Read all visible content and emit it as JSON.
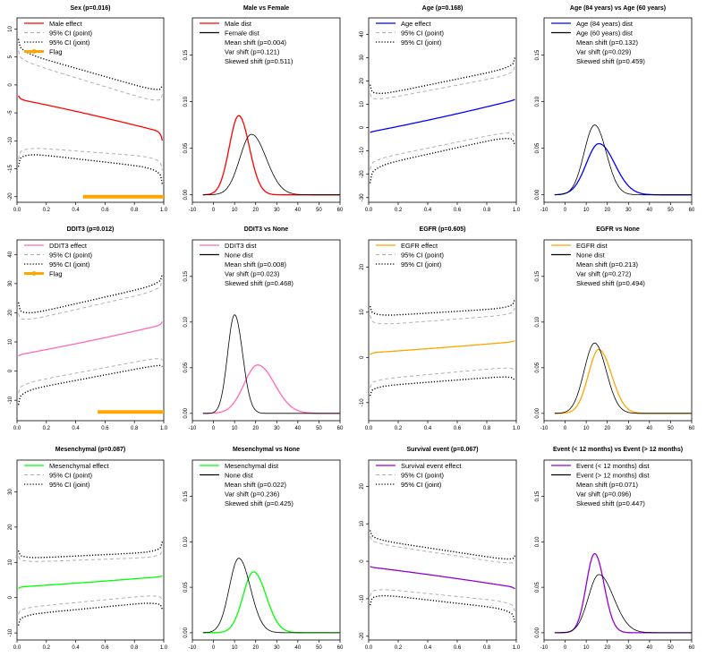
{
  "colors": {
    "red": "#ff0000",
    "blue": "#0000ff",
    "pink": "#ff69b4",
    "orange": "#ffa500",
    "green": "#00ff00",
    "purple": "#9400d3",
    "black": "#000000",
    "gray": "#b0b0b0"
  },
  "chart_data": [
    {
      "type": "line",
      "panel": 1,
      "title": "Sex (p=0.016)",
      "xlim": [
        0,
        1
      ],
      "ylim": [
        -21,
        12
      ],
      "xticks": [
        "0.0",
        "0.2",
        "0.4",
        "0.6",
        "0.8",
        "1.0"
      ],
      "yticks": [
        "-20",
        "-15",
        "-10",
        "-5",
        "0",
        "5",
        "10"
      ],
      "legend": [
        "Male effect",
        "95% CI (point)",
        "95% CI (joint)",
        "Flag"
      ],
      "series": [
        {
          "name": "Male effect",
          "color": "red",
          "style": "solid",
          "kind": "effect",
          "start": -2.5,
          "end": -8.5,
          "edge_start": -1.0,
          "edge_end": -12.0
        },
        {
          "name": "95% CI (point) upper",
          "color": "gray",
          "style": "dashed",
          "kind": "ciu",
          "start": 4.5,
          "end": -3.5,
          "edge_start": 7.5,
          "edge_end": -0.5
        },
        {
          "name": "95% CI (point) lower",
          "color": "gray",
          "style": "dashed",
          "kind": "cil",
          "start": -11.0,
          "end": -13.0,
          "edge_start": -15.0,
          "edge_end": -17.0
        },
        {
          "name": "95% CI (joint) upper",
          "color": "black",
          "style": "dotted",
          "kind": "ciu",
          "start": 6.0,
          "end": -1.5,
          "edge_start": 10.0,
          "edge_end": 1.0
        },
        {
          "name": "95% CI (joint) lower",
          "color": "black",
          "style": "dotted",
          "kind": "cil",
          "start": -12.0,
          "end": -15.0,
          "edge_start": -16.5,
          "edge_end": -20.0
        }
      ],
      "flag": {
        "color": "orange",
        "x_start": 0.45,
        "x_end": 1.0,
        "y": -20
      }
    },
    {
      "type": "line",
      "panel": 2,
      "title": "Male vs Female",
      "xlim": [
        -10,
        60
      ],
      "ylim": [
        -0.008,
        0.19
      ],
      "xticks": [
        "-10",
        "0",
        "10",
        "20",
        "30",
        "40",
        "50",
        "60"
      ],
      "yticks": [
        "0.00",
        "0.05",
        "0.10",
        "0.15"
      ],
      "legend": [
        "Male dist",
        "Female dist",
        "Mean shift (p=0.004)",
        "Var shift (p=0.121)",
        "Skewed shift (p=0.511)"
      ],
      "series": [
        {
          "name": "Male dist",
          "color": "red",
          "peak_x": 12,
          "peak_y": 0.085,
          "sd_left": 4.5,
          "sd_right": 5.0
        },
        {
          "name": "Female dist",
          "color": "black",
          "peak_x": 18,
          "peak_y": 0.065,
          "sd_left": 5.5,
          "sd_right": 7.0
        }
      ]
    },
    {
      "type": "line",
      "panel": 3,
      "title": "Age (p=0.168)",
      "xlim": [
        0,
        1
      ],
      "ylim": [
        -32,
        47
      ],
      "xticks": [
        "0.0",
        "0.2",
        "0.4",
        "0.6",
        "0.8",
        "1.0"
      ],
      "yticks": [
        "-30",
        "-20",
        "-10",
        "0",
        "10",
        "20",
        "30",
        "40"
      ],
      "legend": [
        "Age effect",
        "95% CI (point)",
        "95% CI (joint)"
      ],
      "series": [
        {
          "name": "Age effect",
          "color": "blue",
          "style": "solid",
          "kind": "effect",
          "start": -2.0,
          "end": 12.0,
          "edge_start": -2.5,
          "edge_end": 12.5
        },
        {
          "name": "95% CI (point) upper",
          "color": "gray",
          "style": "dashed",
          "kind": "ciu",
          "start": 11.0,
          "end": 23.0,
          "edge_start": 17.0,
          "edge_end": 29.0
        },
        {
          "name": "95% CI (point) lower",
          "color": "gray",
          "style": "dashed",
          "kind": "cil",
          "start": -14.0,
          "end": -1.0,
          "edge_start": -21.0,
          "edge_end": -6.0
        },
        {
          "name": "95% CI (joint) upper",
          "color": "black",
          "style": "dotted",
          "kind": "ciu",
          "start": 13.0,
          "end": 26.0,
          "edge_start": 22.0,
          "edge_end": 33.0
        },
        {
          "name": "95% CI (joint) lower",
          "color": "black",
          "style": "dotted",
          "kind": "cil",
          "start": -17.0,
          "end": -3.0,
          "edge_start": -29.0,
          "edge_end": -11.0
        }
      ]
    },
    {
      "type": "line",
      "panel": 4,
      "title": "Age (84 years) vs Age (60 years)",
      "xlim": [
        -10,
        60
      ],
      "ylim": [
        -0.008,
        0.19
      ],
      "xticks": [
        "-10",
        "0",
        "10",
        "20",
        "30",
        "40",
        "50",
        "60"
      ],
      "yticks": [
        "0.00",
        "0.05",
        "0.10",
        "0.15"
      ],
      "legend": [
        "Age (84 years) dist",
        "Age (60 years) dist",
        "Mean shift (p=0.132)",
        "Var shift (p=0.029)",
        "Skewed shift (p=0.459)"
      ],
      "series": [
        {
          "name": "Age (84 years) dist",
          "color": "blue",
          "peak_x": 16,
          "peak_y": 0.055,
          "sd_left": 6.0,
          "sd_right": 7.5
        },
        {
          "name": "Age (60 years) dist",
          "color": "black",
          "peak_x": 14,
          "peak_y": 0.075,
          "sd_left": 5.0,
          "sd_right": 5.5
        }
      ]
    },
    {
      "type": "line",
      "panel": 5,
      "title": "DDIT3 (p=0.012)",
      "xlim": [
        0,
        1
      ],
      "ylim": [
        -17,
        45
      ],
      "xticks": [
        "0.0",
        "0.2",
        "0.4",
        "0.6",
        "0.8",
        "1.0"
      ],
      "yticks": [
        "-10",
        "0",
        "10",
        "20",
        "30",
        "40"
      ],
      "legend": [
        "DDIT3 effect",
        "95% CI (point)",
        "95% CI (joint)",
        "Flag"
      ],
      "series": [
        {
          "name": "DDIT3 effect",
          "color": "pink",
          "style": "solid",
          "kind": "effect",
          "start": 5.5,
          "end": 16.0,
          "edge_start": 4.5,
          "edge_end": 18.5
        },
        {
          "name": "95% CI (point) upper",
          "color": "gray",
          "style": "dashed",
          "kind": "ciu",
          "start": 16.5,
          "end": 28.0,
          "edge_start": 22.0,
          "edge_end": 34.0
        },
        {
          "name": "95% CI (point) lower",
          "color": "gray",
          "style": "dashed",
          "kind": "cil",
          "start": -4.5,
          "end": 5.0,
          "edge_start": -10.0,
          "edge_end": 3.0
        },
        {
          "name": "95% CI (joint) upper",
          "color": "black",
          "style": "dotted",
          "kind": "ciu",
          "start": 18.5,
          "end": 30.0,
          "edge_start": 27.0,
          "edge_end": 36.0
        },
        {
          "name": "95% CI (joint) lower",
          "color": "black",
          "style": "dotted",
          "kind": "cil",
          "start": -7.0,
          "end": 2.5,
          "edge_start": -15.0,
          "edge_end": 1.0
        }
      ],
      "flag": {
        "color": "orange",
        "x_start": 0.55,
        "x_end": 1.0,
        "y": -14
      }
    },
    {
      "type": "line",
      "panel": 6,
      "title": "DDIT3 vs None",
      "xlim": [
        -10,
        60
      ],
      "ylim": [
        -0.008,
        0.19
      ],
      "xticks": [
        "-10",
        "0",
        "10",
        "20",
        "30",
        "40",
        "50",
        "60"
      ],
      "yticks": [
        "0.00",
        "0.05",
        "0.10",
        "0.15"
      ],
      "legend": [
        "DDIT3 dist",
        "None dist",
        "Mean shift (p=0.008)",
        "Var shift (p=0.023)",
        "Skewed shift (p=0.468)"
      ],
      "series": [
        {
          "name": "DDIT3 dist",
          "color": "pink",
          "peak_x": 21,
          "peak_y": 0.053,
          "sd_left": 6.5,
          "sd_right": 8.0
        },
        {
          "name": "None dist",
          "color": "black",
          "peak_x": 10,
          "peak_y": 0.108,
          "sd_left": 3.3,
          "sd_right": 3.8
        }
      ]
    },
    {
      "type": "line",
      "panel": 7,
      "title": "EGFR (p=0.605)",
      "xlim": [
        0,
        1
      ],
      "ylim": [
        -14,
        26
      ],
      "xticks": [
        "0.0",
        "0.2",
        "0.4",
        "0.6",
        "0.8",
        "1.0"
      ],
      "yticks": [
        "-10",
        "0",
        "10",
        "20"
      ],
      "legend": [
        "EGFR effect",
        "95% CI (point)",
        "95% CI (joint)"
      ],
      "series": [
        {
          "name": "EGFR effect",
          "color": "orange",
          "style": "solid",
          "kind": "effect",
          "start": 1.0,
          "end": 3.5,
          "edge_start": 0.0,
          "edge_end": 4.0
        },
        {
          "name": "95% CI (point) upper",
          "color": "gray",
          "style": "dashed",
          "kind": "ciu",
          "start": 7.0,
          "end": 9.5,
          "edge_start": 11.0,
          "edge_end": 12.0
        },
        {
          "name": "95% CI (point) lower",
          "color": "gray",
          "style": "dashed",
          "kind": "cil",
          "start": -5.0,
          "end": -2.0,
          "edge_start": -8.0,
          "edge_end": -4.0
        },
        {
          "name": "95% CI (joint) upper",
          "color": "black",
          "style": "dotted",
          "kind": "ciu",
          "start": 9.0,
          "end": 11.0,
          "edge_start": 13.0,
          "edge_end": 14.5
        },
        {
          "name": "95% CI (joint) lower",
          "color": "black",
          "style": "dotted",
          "kind": "cil",
          "start": -6.5,
          "end": -4.0,
          "edge_start": -10.0,
          "edge_end": -6.0
        }
      ]
    },
    {
      "type": "line",
      "panel": 8,
      "title": "EGFR vs None",
      "xlim": [
        -10,
        60
      ],
      "ylim": [
        -0.008,
        0.19
      ],
      "xticks": [
        "-10",
        "0",
        "10",
        "20",
        "30",
        "40",
        "50",
        "60"
      ],
      "yticks": [
        "0.00",
        "0.05",
        "0.10",
        "0.15"
      ],
      "legend": [
        "EGFR dist",
        "None dist",
        "Mean shift (p=0.213)",
        "Var shift (p=0.272)",
        "Skewed shift (p=0.494)"
      ],
      "series": [
        {
          "name": "EGFR dist",
          "color": "orange",
          "peak_x": 16,
          "peak_y": 0.07,
          "sd_left": 5.0,
          "sd_right": 6.0
        },
        {
          "name": "None dist",
          "color": "black",
          "peak_x": 14,
          "peak_y": 0.077,
          "sd_left": 5.0,
          "sd_right": 5.5
        }
      ]
    },
    {
      "type": "line",
      "panel": 9,
      "title": "Mesenchymal (p=0.087)",
      "xlim": [
        0,
        1
      ],
      "ylim": [
        -12,
        39
      ],
      "xticks": [
        "0.0",
        "0.2",
        "0.4",
        "0.6",
        "0.8",
        "1.0"
      ],
      "yticks": [
        "-10",
        "0",
        "10",
        "20",
        "30"
      ],
      "legend": [
        "Mesenchymal effect",
        "95% CI (point)",
        "95% CI (joint)"
      ],
      "series": [
        {
          "name": "Mesenchymal effect",
          "color": "green",
          "style": "solid",
          "kind": "effect",
          "start": 3.0,
          "end": 6.0,
          "edge_start": 2.0,
          "edge_end": 6.5
        },
        {
          "name": "95% CI (point) upper",
          "color": "gray",
          "style": "dashed",
          "kind": "ciu",
          "start": 10.0,
          "end": 11.5,
          "edge_start": 13.0,
          "edge_end": 15.0
        },
        {
          "name": "95% CI (point) lower",
          "color": "gray",
          "style": "dashed",
          "kind": "cil",
          "start": -3.0,
          "end": 1.0,
          "edge_start": -6.0,
          "edge_end": -2.0
        },
        {
          "name": "95% CI (joint) upper",
          "color": "black",
          "style": "dotted",
          "kind": "ciu",
          "start": 11.0,
          "end": 13.0,
          "edge_start": 15.0,
          "edge_end": 18.0
        },
        {
          "name": "95% CI (joint) lower",
          "color": "black",
          "style": "dotted",
          "kind": "cil",
          "start": -5.0,
          "end": -1.0,
          "edge_start": -10.0,
          "edge_end": -5.0
        }
      ]
    },
    {
      "type": "line",
      "panel": 10,
      "title": "Mesenchymal vs None",
      "xlim": [
        -10,
        60
      ],
      "ylim": [
        -0.008,
        0.19
      ],
      "xticks": [
        "-10",
        "0",
        "10",
        "20",
        "30",
        "40",
        "50",
        "60"
      ],
      "yticks": [
        "0.00",
        "0.05",
        "0.10",
        "0.15"
      ],
      "legend": [
        "Mesenchymal dist",
        "None dist",
        "Mean shift (p=0.022)",
        "Var shift (p=0.236)",
        "Skewed shift (p=0.425)"
      ],
      "series": [
        {
          "name": "Mesenchymal dist",
          "color": "green",
          "peak_x": 19,
          "peak_y": 0.067,
          "sd_left": 5.0,
          "sd_right": 6.0
        },
        {
          "name": "None dist",
          "color": "black",
          "peak_x": 12,
          "peak_y": 0.082,
          "sd_left": 4.5,
          "sd_right": 5.5
        }
      ]
    },
    {
      "type": "line",
      "panel": 11,
      "title": "Survival event (p=0.067)",
      "xlim": [
        0,
        1
      ],
      "ylim": [
        -21,
        27
      ],
      "xticks": [
        "0.0",
        "0.2",
        "0.4",
        "0.6",
        "0.8",
        "1.0"
      ],
      "yticks": [
        "-20",
        "-10",
        "0",
        "10",
        "20"
      ],
      "legend": [
        "Survival event effect",
        "95% CI (point)",
        "95% CI (joint)"
      ],
      "series": [
        {
          "name": "Survival event effect",
          "color": "purple",
          "style": "solid",
          "kind": "effect",
          "start": -1.5,
          "end": -7.0,
          "edge_start": -1.2,
          "edge_end": -8.0
        },
        {
          "name": "95% CI (point) upper",
          "color": "gray",
          "style": "dashed",
          "kind": "ciu",
          "start": 5.0,
          "end": -1.0,
          "edge_start": 8.0,
          "edge_end": 1.0
        },
        {
          "name": "95% CI (point) lower",
          "color": "gray",
          "style": "dashed",
          "kind": "cil",
          "start": -7.0,
          "end": -11.0,
          "edge_start": -11.0,
          "edge_end": -15.0
        },
        {
          "name": "95% CI (joint) upper",
          "color": "black",
          "style": "dotted",
          "kind": "ciu",
          "start": 6.0,
          "end": 0.0,
          "edge_start": 10.0,
          "edge_end": 2.5
        },
        {
          "name": "95% CI (joint) lower",
          "color": "black",
          "style": "dotted",
          "kind": "cil",
          "start": -8.5,
          "end": -13.0,
          "edge_start": -14.0,
          "edge_end": -19.0
        }
      ]
    },
    {
      "type": "line",
      "panel": 12,
      "title": "Event (< 12 months) vs Event (> 12 months)",
      "xlim": [
        -10,
        60
      ],
      "ylim": [
        -0.008,
        0.19
      ],
      "xticks": [
        "-10",
        "0",
        "10",
        "20",
        "30",
        "40",
        "50",
        "60"
      ],
      "yticks": [
        "0.00",
        "0.05",
        "0.10",
        "0.15"
      ],
      "legend": [
        "Event (< 12 months) dist",
        "Event (> 12 months) dist",
        "Mean shift (p=0.071)",
        "Var shift (p=0.096)",
        "Skewed shift (p=0.447)"
      ],
      "series": [
        {
          "name": "Event (< 12 months) dist",
          "color": "purple",
          "peak_x": 14,
          "peak_y": 0.087,
          "sd_left": 4.0,
          "sd_right": 4.5
        },
        {
          "name": "Event (> 12 months) dist",
          "color": "black",
          "peak_x": 16,
          "peak_y": 0.064,
          "sd_left": 5.0,
          "sd_right": 7.0
        }
      ]
    }
  ]
}
